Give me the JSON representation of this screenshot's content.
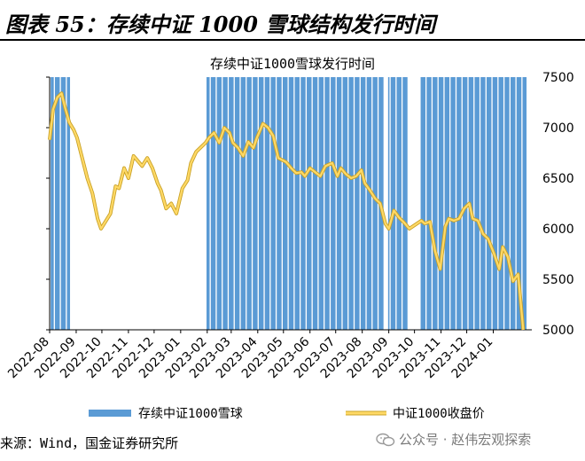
{
  "figure_title": "图表 55：存续中证 1000 雪球结构发行时间",
  "source": "来源：Wind，国金证券研究所",
  "watermark": "公众号 · 赵伟宏观探索",
  "colors": {
    "bars": "#5b9bd5",
    "line": "#ffd966",
    "line_outline": "#c9a227"
  },
  "chart_data": {
    "type": "bar+line",
    "title": "存续中证1000雪球发行时间",
    "xlabel": "",
    "ylabel": "",
    "ylim": [
      5000,
      7500
    ],
    "yticks": [
      5000,
      5500,
      6000,
      6500,
      7000,
      7500
    ],
    "y_axis_position": "right",
    "xlim": [
      "2022-08-01",
      "2024-02-15"
    ],
    "xticks": [
      "2022-08",
      "2022-09",
      "2022-10",
      "2022-11",
      "2022-12",
      "2023-01",
      "2023-02",
      "2023-03",
      "2023-04",
      "2023-05",
      "2023-06",
      "2023-07",
      "2023-08",
      "2023-09",
      "2023-10",
      "2023-11",
      "2023-12",
      "2024-01"
    ],
    "legend_position": "bottom",
    "series": [
      {
        "name": "存续中证1000雪球",
        "type": "bar",
        "issue_date_ranges": [
          [
            "2022-08-03",
            "2022-08-24"
          ],
          [
            "2023-02-01",
            "2023-05-15"
          ],
          [
            "2023-05-16",
            "2023-08-25"
          ],
          [
            "2023-09-01",
            "2023-09-22"
          ],
          [
            "2023-10-08",
            "2023-11-25"
          ],
          [
            "2023-11-27",
            "2024-02-08"
          ]
        ]
      },
      {
        "name": "中证1000收盘价",
        "type": "line",
        "x": [
          "2022-08-01",
          "2022-08-05",
          "2022-08-10",
          "2022-08-15",
          "2022-08-19",
          "2022-08-24",
          "2022-08-29",
          "2022-09-02",
          "2022-09-08",
          "2022-09-14",
          "2022-09-20",
          "2022-09-26",
          "2022-09-30",
          "2022-10-11",
          "2022-10-17",
          "2022-10-21",
          "2022-10-27",
          "2022-11-01",
          "2022-11-07",
          "2022-11-11",
          "2022-11-17",
          "2022-11-23",
          "2022-11-29",
          "2022-12-05",
          "2022-12-09",
          "2022-12-15",
          "2022-12-21",
          "2022-12-27",
          "2023-01-03",
          "2023-01-09",
          "2023-01-13",
          "2023-01-19",
          "2023-01-30",
          "2023-02-03",
          "2023-02-09",
          "2023-02-15",
          "2023-02-21",
          "2023-02-27",
          "2023-03-03",
          "2023-03-09",
          "2023-03-15",
          "2023-03-21",
          "2023-03-27",
          "2023-03-31",
          "2023-04-07",
          "2023-04-13",
          "2023-04-19",
          "2023-04-25",
          "2023-05-04",
          "2023-05-10",
          "2023-05-16",
          "2023-05-22",
          "2023-05-26",
          "2023-06-01",
          "2023-06-07",
          "2023-06-13",
          "2023-06-19",
          "2023-06-27",
          "2023-07-03",
          "2023-07-07",
          "2023-07-13",
          "2023-07-19",
          "2023-07-25",
          "2023-07-31",
          "2023-08-04",
          "2023-08-10",
          "2023-08-16",
          "2023-08-22",
          "2023-08-28",
          "2023-09-01",
          "2023-09-07",
          "2023-09-13",
          "2023-09-19",
          "2023-09-25",
          "2023-10-09",
          "2023-10-13",
          "2023-10-19",
          "2023-10-25",
          "2023-10-31",
          "2023-11-06",
          "2023-11-10",
          "2023-11-16",
          "2023-11-22",
          "2023-11-28",
          "2023-12-04",
          "2023-12-08",
          "2023-12-14",
          "2023-12-20",
          "2023-12-26",
          "2024-01-02",
          "2024-01-08",
          "2024-01-12",
          "2024-01-18",
          "2024-01-24",
          "2024-01-30",
          "2024-02-05"
        ],
        "values": [
          6880,
          7180,
          7300,
          7340,
          7200,
          7050,
          6980,
          6900,
          6700,
          6500,
          6350,
          6100,
          6000,
          6150,
          6420,
          6400,
          6600,
          6500,
          6720,
          6680,
          6620,
          6700,
          6600,
          6450,
          6380,
          6200,
          6250,
          6150,
          6400,
          6480,
          6650,
          6760,
          6850,
          6900,
          6950,
          6850,
          7000,
          6950,
          6850,
          6800,
          6720,
          6860,
          6800,
          6900,
          7040,
          7000,
          6920,
          6700,
          6660,
          6600,
          6550,
          6560,
          6520,
          6600,
          6560,
          6520,
          6620,
          6650,
          6520,
          6600,
          6540,
          6500,
          6520,
          6580,
          6450,
          6380,
          6300,
          6250,
          6050,
          6000,
          6180,
          6110,
          6060,
          6000,
          6080,
          6050,
          6070,
          5780,
          5600,
          6020,
          6100,
          6080,
          6100,
          6200,
          6250,
          6100,
          6080,
          5950,
          5900,
          5750,
          5600,
          5820,
          5720,
          5480,
          5550,
          5000
        ]
      }
    ]
  }
}
